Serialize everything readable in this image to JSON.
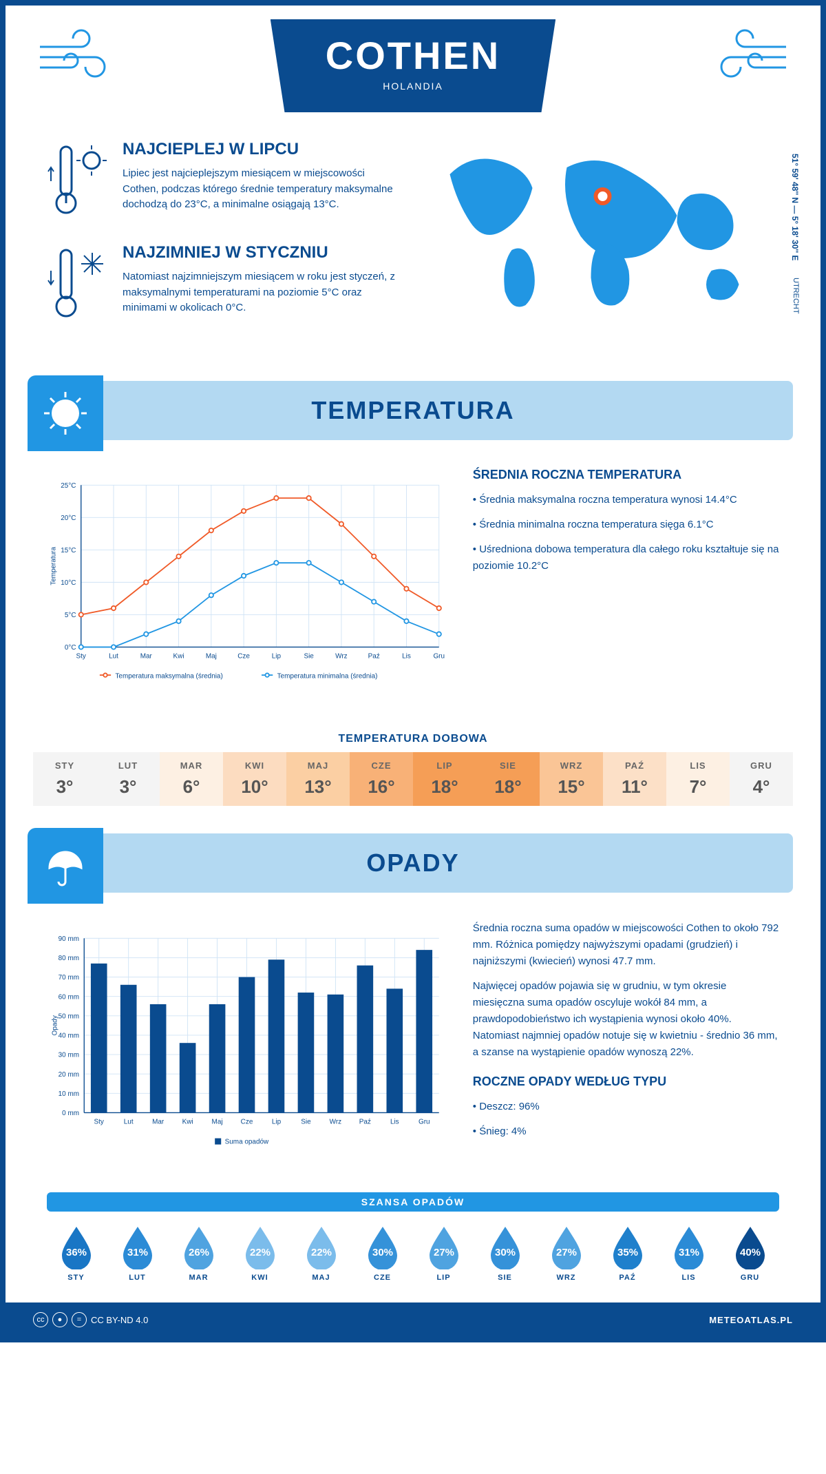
{
  "header": {
    "city": "COTHEN",
    "country": "HOLANDIA",
    "coords": "51° 59' 48'' N — 5° 18' 30'' E",
    "region": "UTRECHT"
  },
  "facts": {
    "hot": {
      "title": "NAJCIEPLEJ W LIPCU",
      "text": "Lipiec jest najcieplejszym miesiącem w miejscowości Cothen, podczas którego średnie temperatury maksymalne dochodzą do 23°C, a minimalne osiągają 13°C."
    },
    "cold": {
      "title": "NAJZIMNIEJ W STYCZNIU",
      "text": "Natomiast najzimniejszym miesiącem w roku jest styczeń, z maksymalnymi temperaturami na poziomie 5°C oraz minimami w okolicach 0°C."
    }
  },
  "temperature": {
    "section_title": "TEMPERATURA",
    "chart": {
      "type": "line",
      "months": [
        "Sty",
        "Lut",
        "Mar",
        "Kwi",
        "Maj",
        "Cze",
        "Lip",
        "Sie",
        "Wrz",
        "Paź",
        "Lis",
        "Gru"
      ],
      "max_series": {
        "label": "Temperatura maksymalna (średnia)",
        "color": "#f05a28",
        "values": [
          5,
          6,
          10,
          14,
          18,
          21,
          23,
          23,
          19,
          14,
          9,
          6
        ]
      },
      "min_series": {
        "label": "Temperatura minimalna (średnia)",
        "color": "#2196e3",
        "values": [
          0,
          0,
          2,
          4,
          8,
          11,
          13,
          13,
          10,
          7,
          4,
          2
        ]
      },
      "ylabel": "Temperatura",
      "ylim": [
        0,
        25
      ],
      "ytick_step": 5,
      "grid_color": "#cfe3f5",
      "axis_color": "#0a4b8f",
      "marker": "circle",
      "line_width": 2
    },
    "summary": {
      "title": "ŚREDNIA ROCZNA TEMPERATURA",
      "bullets": [
        "Średnia maksymalna roczna temperatura wynosi 14.4°C",
        "Średnia minimalna roczna temperatura sięga 6.1°C",
        "Uśredniona dobowa temperatura dla całego roku kształtuje się na poziomie 10.2°C"
      ]
    },
    "daily": {
      "title": "TEMPERATURA DOBOWA",
      "months": [
        "STY",
        "LUT",
        "MAR",
        "KWI",
        "MAJ",
        "CZE",
        "LIP",
        "SIE",
        "WRZ",
        "PAŹ",
        "LIS",
        "GRU"
      ],
      "values": [
        "3°",
        "3°",
        "6°",
        "10°",
        "13°",
        "16°",
        "18°",
        "18°",
        "15°",
        "11°",
        "7°",
        "4°"
      ],
      "colors": [
        "#f4f4f4",
        "#f4f4f4",
        "#fdf0e3",
        "#fcdcc0",
        "#fbcfa3",
        "#f8b177",
        "#f59e56",
        "#f59e56",
        "#fac596",
        "#fce0c7",
        "#fdf0e3",
        "#f4f4f4"
      ]
    }
  },
  "precipitation": {
    "section_title": "OPADY",
    "chart": {
      "type": "bar",
      "months": [
        "Sty",
        "Lut",
        "Mar",
        "Kwi",
        "Maj",
        "Cze",
        "Lip",
        "Sie",
        "Wrz",
        "Paź",
        "Lis",
        "Gru"
      ],
      "values": [
        77,
        66,
        56,
        36,
        56,
        70,
        79,
        62,
        61,
        76,
        64,
        84
      ],
      "bar_color": "#0a4b8f",
      "ylabel": "Opady",
      "legend": "Suma opadów",
      "ylim": [
        0,
        90
      ],
      "ytick_step": 10,
      "grid_color": "#cfe3f5",
      "axis_color": "#0a4b8f",
      "bar_width": 0.55
    },
    "summary": {
      "para1": "Średnia roczna suma opadów w miejscowości Cothen to około 792 mm. Różnica pomiędzy najwyższymi opadami (grudzień) i najniższymi (kwiecień) wynosi 47.7 mm.",
      "para2": "Najwięcej opadów pojawia się w grudniu, w tym okresie miesięczna suma opadów oscyluje wokół 84 mm, a prawdopodobieństwo ich wystąpienia wynosi około 40%. Natomiast najmniej opadów notuje się w kwietniu - średnio 36 mm, a szanse na wystąpienie opadów wynoszą 22%."
    },
    "chance": {
      "title": "SZANSA OPADÓW",
      "months": [
        "STY",
        "LUT",
        "MAR",
        "KWI",
        "MAJ",
        "CZE",
        "LIP",
        "SIE",
        "WRZ",
        "PAŹ",
        "LIS",
        "GRU"
      ],
      "values": [
        "36%",
        "31%",
        "26%",
        "22%",
        "22%",
        "30%",
        "27%",
        "30%",
        "27%",
        "35%",
        "31%",
        "40%"
      ],
      "colors": [
        "#1976c5",
        "#2b8bd6",
        "#4fa3e0",
        "#7bbceb",
        "#7bbceb",
        "#3592d9",
        "#4fa3e0",
        "#3592d9",
        "#4fa3e0",
        "#1f80cc",
        "#2b8bd6",
        "#0a4b8f"
      ]
    },
    "by_type": {
      "title": "ROCZNE OPADY WEDŁUG TYPU",
      "items": [
        "Deszcz: 96%",
        "Śnieg: 4%"
      ]
    }
  },
  "footer": {
    "license": "CC BY-ND 4.0",
    "site": "METEOATLAS.PL"
  }
}
